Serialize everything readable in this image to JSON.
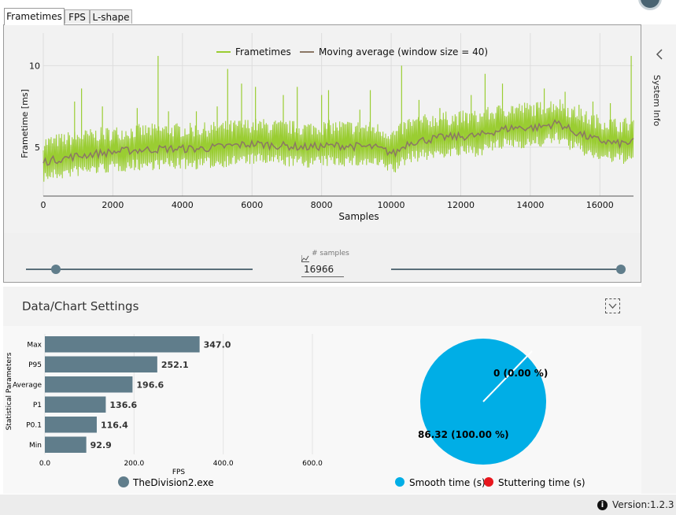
{
  "tabs": [
    {
      "label": "Frametimes",
      "active": true
    },
    {
      "label": "FPS",
      "active": false
    },
    {
      "label": "L-shape",
      "active": false
    }
  ],
  "frametime_chart": {
    "type": "line",
    "legend": {
      "series1": "Frametimes",
      "series2": "Moving average (window size = 40)"
    },
    "xlabel": "Samples",
    "ylabel": "Frametime [ms]",
    "x_ticks": [
      "0",
      "2000",
      "4000",
      "6000",
      "8000",
      "10000",
      "12000",
      "14000",
      "16000"
    ],
    "y_ticks": [
      "5",
      "10"
    ],
    "xlim": [
      0,
      16966
    ],
    "ylim": [
      2,
      12
    ],
    "colors": {
      "frametimes": "#9acd32",
      "moving_average": "#8b7765"
    },
    "moving_average_points": [
      [
        0,
        4.1
      ],
      [
        800,
        4.4
      ],
      [
        1500,
        4.6
      ],
      [
        2500,
        4.8
      ],
      [
        3500,
        4.9
      ],
      [
        4500,
        4.9
      ],
      [
        5000,
        5.0
      ],
      [
        6000,
        5.2
      ],
      [
        6800,
        5.1
      ],
      [
        7500,
        5.0
      ],
      [
        8500,
        5.1
      ],
      [
        9500,
        5.0
      ],
      [
        10100,
        4.6
      ],
      [
        10500,
        5.3
      ],
      [
        11500,
        5.6
      ],
      [
        12500,
        5.7
      ],
      [
        13000,
        6.0
      ],
      [
        13500,
        6.2
      ],
      [
        14200,
        6.2
      ],
      [
        14800,
        6.5
      ],
      [
        15200,
        6.0
      ],
      [
        15800,
        5.5
      ],
      [
        16500,
        5.2
      ],
      [
        16966,
        5.3
      ]
    ],
    "spikes": [
      [
        900,
        7.8
      ],
      [
        1100,
        8.6
      ],
      [
        1700,
        7.5
      ],
      [
        2700,
        7.4
      ],
      [
        3300,
        10.6
      ],
      [
        3600,
        7.2
      ],
      [
        4400,
        7.2
      ],
      [
        5000,
        7.5
      ],
      [
        5300,
        9.8
      ],
      [
        5700,
        8.9
      ],
      [
        6100,
        8.7
      ],
      [
        6900,
        8.2
      ],
      [
        7300,
        8.7
      ],
      [
        8000,
        8.2
      ],
      [
        8200,
        8.5
      ],
      [
        9100,
        7.3
      ],
      [
        9400,
        8.5
      ],
      [
        10300,
        10.0
      ],
      [
        10800,
        7.9
      ],
      [
        11400,
        7.4
      ],
      [
        12300,
        8.2
      ],
      [
        12700,
        9.5
      ],
      [
        13200,
        8.9
      ],
      [
        14400,
        8.6
      ],
      [
        15000,
        8.4
      ],
      [
        15400,
        7.6
      ],
      [
        15800,
        7.8
      ],
      [
        16300,
        7.7
      ],
      [
        16900,
        10.6
      ]
    ]
  },
  "sample_range": {
    "label": "# samples",
    "value": "16966",
    "left_slider_fraction": 0.11,
    "right_slider_fraction": 1.0
  },
  "sidebar": {
    "label": "System Info"
  },
  "settings_header": {
    "title": "Data/Chart Settings"
  },
  "stats_chart": {
    "type": "bar",
    "ylabel": "Statistical Parameters",
    "xlabel": "FPS",
    "x_ticks": [
      "0.0",
      "200.0",
      "400.0",
      "600.0"
    ],
    "xlim": [
      0,
      600
    ],
    "categories": [
      "Max",
      "P95",
      "Average",
      "P1",
      "P0.1",
      "Min"
    ],
    "values": [
      347.0,
      252.1,
      196.6,
      136.6,
      116.4,
      92.9
    ],
    "value_labels": [
      "347.0",
      "252.1",
      "196.6",
      "136.6",
      "116.4",
      "92.9"
    ],
    "color": "#607d8b",
    "legend": "TheDivision2.exe"
  },
  "pie_chart": {
    "type": "pie",
    "slices": [
      {
        "name": "Smooth time (s)",
        "value": 86.32,
        "label": "86.32 (100.00 %)",
        "color": "#00aee6"
      },
      {
        "name": "Stuttering time (s)",
        "value": 0,
        "label": "0 (0.00 %)",
        "color": "#e8161d"
      }
    ]
  },
  "footer": {
    "version_label": "Version:",
    "version": "1.2.3"
  }
}
